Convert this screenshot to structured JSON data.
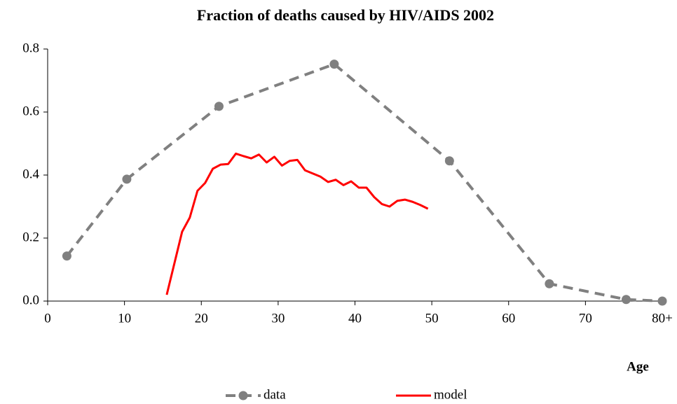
{
  "chart_data": {
    "type": "line",
    "title": "Fraction of deaths caused by HIV/AIDS 2002",
    "x_label": "Age",
    "xlim": [
      0,
      80
    ],
    "xticks": [
      0,
      10,
      20,
      30,
      40,
      50,
      60,
      70,
      {
        "value": 80,
        "label": "80+"
      }
    ],
    "ylim": [
      0,
      0.8
    ],
    "yticks": [
      {
        "value": 0,
        "label": "0.0"
      },
      0.2,
      0.4,
      0.6,
      0.8
    ],
    "grid": false,
    "legend": "bottom",
    "series": [
      {
        "name": "data",
        "color": "#808080",
        "style": "dashed",
        "marker": true,
        "x": [
          2.5,
          10.3,
          22.3,
          37.3,
          52.3,
          65.3,
          75.3,
          80
        ],
        "values": [
          0.143,
          0.387,
          0.618,
          0.752,
          0.445,
          0.055,
          0.005,
          0.0
        ]
      },
      {
        "name": "model",
        "color": "#ff0000",
        "style": "solid",
        "marker": false,
        "x": [
          15.5,
          16.5,
          17.5,
          18.5,
          19.5,
          20.5,
          21.5,
          22.5,
          23.5,
          24.5,
          25.5,
          26.5,
          27.5,
          28.5,
          29.5,
          30.5,
          31.5,
          32.5,
          33.5,
          34.5,
          35.5,
          36.5,
          37.5,
          38.5,
          39.5,
          40.5,
          41.5,
          42.5,
          43.5,
          44.5,
          45.5,
          46.5,
          47.5,
          48.5,
          49.5
        ],
        "values": [
          0.02,
          0.12,
          0.22,
          0.265,
          0.35,
          0.375,
          0.42,
          0.433,
          0.435,
          0.468,
          0.46,
          0.453,
          0.465,
          0.44,
          0.458,
          0.43,
          0.445,
          0.448,
          0.415,
          0.405,
          0.395,
          0.378,
          0.385,
          0.368,
          0.38,
          0.36,
          0.36,
          0.33,
          0.308,
          0.3,
          0.318,
          0.322,
          0.315,
          0.305,
          0.293
        ]
      }
    ]
  }
}
